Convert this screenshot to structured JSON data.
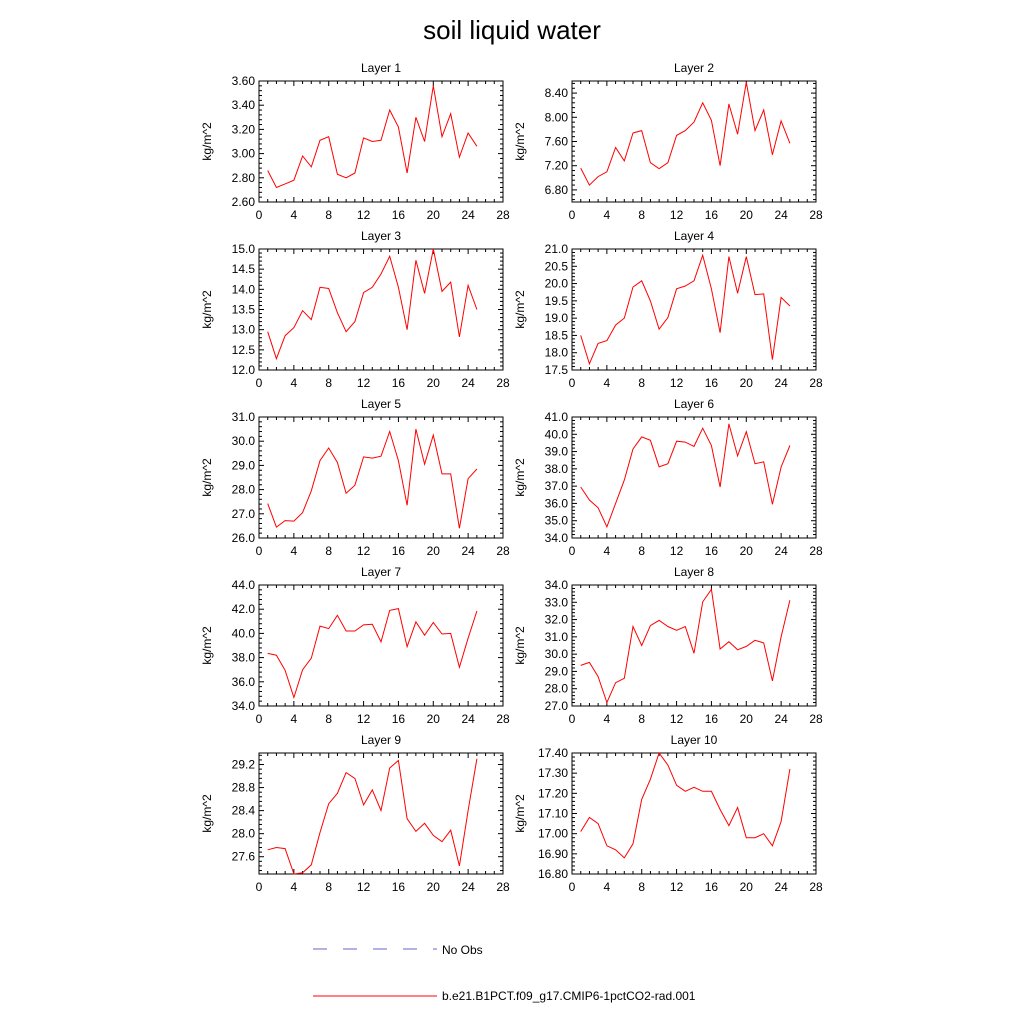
{
  "figure": {
    "title": "soil liquid water",
    "legend": {
      "no_obs_label": "No Obs",
      "model_label": "b.e21.B1PCT.f09_g17.CMIP6-1pctCO2-rad.001"
    },
    "colors": {
      "model": "#ff0000",
      "obs": "#6666cc",
      "axis": "#000000"
    }
  },
  "chart_data": [
    {
      "type": "line",
      "title": "Layer 1",
      "xlabel": "",
      "ylabel": "kg/m^2",
      "xlim": [
        0,
        28
      ],
      "xticks": [
        0,
        4,
        8,
        12,
        16,
        20,
        24,
        28
      ],
      "ylim": [
        2.6,
        3.6
      ],
      "yticks": [
        2.6,
        2.8,
        3.0,
        3.2,
        3.4,
        3.6
      ],
      "yticklabels": [
        "2.60",
        "2.80",
        "3.00",
        "3.20",
        "3.40",
        "3.60"
      ],
      "series": [
        {
          "name": "b.e21.B1PCT.f09_g17.CMIP6-1pctCO2-rad.001",
          "color": "#ff0000",
          "x": [
            1,
            2,
            3,
            4,
            5,
            6,
            7,
            8,
            9,
            10,
            11,
            12,
            13,
            14,
            15,
            16,
            17,
            18,
            19,
            20,
            21,
            22,
            23,
            24,
            25
          ],
          "y": [
            2.86,
            2.72,
            2.75,
            2.78,
            2.98,
            2.89,
            3.11,
            3.14,
            2.83,
            2.8,
            2.84,
            3.13,
            3.1,
            3.11,
            3.36,
            3.22,
            2.84,
            3.3,
            3.1,
            3.56,
            3.14,
            3.33,
            2.97,
            3.17,
            3.06
          ]
        }
      ]
    },
    {
      "type": "line",
      "title": "Layer 2",
      "xlabel": "",
      "ylabel": "kg/m^2",
      "xlim": [
        0,
        28
      ],
      "xticks": [
        0,
        4,
        8,
        12,
        16,
        20,
        24,
        28
      ],
      "ylim": [
        6.6,
        8.6
      ],
      "yticks": [
        6.8,
        7.2,
        7.6,
        8.0,
        8.4
      ],
      "yticklabels": [
        "6.80",
        "7.20",
        "7.60",
        "8.00",
        "8.40"
      ],
      "series": [
        {
          "name": "b.e21.B1PCT.f09_g17.CMIP6-1pctCO2-rad.001",
          "color": "#ff0000",
          "x": [
            1,
            2,
            3,
            4,
            5,
            6,
            7,
            8,
            9,
            10,
            11,
            12,
            13,
            14,
            15,
            16,
            17,
            18,
            19,
            20,
            21,
            22,
            23,
            24,
            25
          ],
          "y": [
            7.16,
            6.88,
            7.02,
            7.1,
            7.5,
            7.28,
            7.74,
            7.78,
            7.25,
            7.15,
            7.25,
            7.7,
            7.78,
            7.92,
            8.24,
            7.95,
            7.2,
            8.22,
            7.72,
            8.58,
            7.78,
            8.12,
            7.38,
            7.94,
            7.57
          ]
        }
      ]
    },
    {
      "type": "line",
      "title": "Layer 3",
      "xlabel": "",
      "ylabel": "kg/m^2",
      "xlim": [
        0,
        28
      ],
      "xticks": [
        0,
        4,
        8,
        12,
        16,
        20,
        24,
        28
      ],
      "ylim": [
        12.0,
        15.0
      ],
      "yticks": [
        12.0,
        12.5,
        13.0,
        13.5,
        14.0,
        14.5,
        15.0
      ],
      "yticklabels": [
        "12.0",
        "12.5",
        "13.0",
        "13.5",
        "14.0",
        "14.5",
        "15.0"
      ],
      "series": [
        {
          "name": "b.e21.B1PCT.f09_g17.CMIP6-1pctCO2-rad.001",
          "color": "#ff0000",
          "x": [
            1,
            2,
            3,
            4,
            5,
            6,
            7,
            8,
            9,
            10,
            11,
            12,
            13,
            14,
            15,
            16,
            17,
            18,
            19,
            20,
            21,
            22,
            23,
            24,
            25
          ],
          "y": [
            12.95,
            12.28,
            12.85,
            13.05,
            13.47,
            13.25,
            14.05,
            14.02,
            13.42,
            12.95,
            13.2,
            13.92,
            14.05,
            14.38,
            14.82,
            14.05,
            13.0,
            14.72,
            13.9,
            15.0,
            13.95,
            14.18,
            12.82,
            14.1,
            13.5
          ]
        }
      ]
    },
    {
      "type": "line",
      "title": "Layer 4",
      "xlabel": "",
      "ylabel": "kg/m^2",
      "xlim": [
        0,
        28
      ],
      "xticks": [
        0,
        4,
        8,
        12,
        16,
        20,
        24,
        28
      ],
      "ylim": [
        17.5,
        21.0
      ],
      "yticks": [
        17.5,
        18.0,
        18.5,
        19.0,
        19.5,
        20.0,
        20.5,
        21.0
      ],
      "yticklabels": [
        "17.5",
        "18.0",
        "18.5",
        "19.0",
        "19.5",
        "20.0",
        "20.5",
        "21.0"
      ],
      "series": [
        {
          "name": "b.e21.B1PCT.f09_g17.CMIP6-1pctCO2-rad.001",
          "color": "#ff0000",
          "x": [
            1,
            2,
            3,
            4,
            5,
            6,
            7,
            8,
            9,
            10,
            11,
            12,
            13,
            14,
            15,
            16,
            17,
            18,
            19,
            20,
            21,
            22,
            23,
            24,
            25
          ],
          "y": [
            18.5,
            17.68,
            18.27,
            18.35,
            18.8,
            19.0,
            19.9,
            20.08,
            19.5,
            18.68,
            19.02,
            19.85,
            19.93,
            20.08,
            20.82,
            19.85,
            18.58,
            20.78,
            19.72,
            20.78,
            19.68,
            19.7,
            17.8,
            19.6,
            19.35
          ]
        }
      ]
    },
    {
      "type": "line",
      "title": "Layer 5",
      "xlabel": "",
      "ylabel": "kg/m^2",
      "xlim": [
        0,
        28
      ],
      "xticks": [
        0,
        4,
        8,
        12,
        16,
        20,
        24,
        28
      ],
      "ylim": [
        26.0,
        31.0
      ],
      "yticks": [
        26.0,
        27.0,
        28.0,
        29.0,
        30.0,
        31.0
      ],
      "yticklabels": [
        "26.0",
        "27.0",
        "28.0",
        "29.0",
        "30.0",
        "31.0"
      ],
      "series": [
        {
          "name": "b.e21.B1PCT.f09_g17.CMIP6-1pctCO2-rad.001",
          "color": "#ff0000",
          "x": [
            1,
            2,
            3,
            4,
            5,
            6,
            7,
            8,
            9,
            10,
            11,
            12,
            13,
            14,
            15,
            16,
            17,
            18,
            19,
            20,
            21,
            22,
            23,
            24,
            25
          ],
          "y": [
            27.42,
            26.45,
            26.72,
            26.7,
            27.05,
            27.95,
            29.2,
            29.72,
            29.12,
            27.85,
            28.18,
            29.35,
            29.3,
            29.38,
            30.4,
            29.2,
            27.35,
            30.5,
            29.05,
            30.25,
            28.65,
            28.65,
            26.4,
            28.45,
            28.85
          ]
        }
      ]
    },
    {
      "type": "line",
      "title": "Layer 6",
      "xlabel": "",
      "ylabel": "kg/m^2",
      "xlim": [
        0,
        28
      ],
      "xticks": [
        0,
        4,
        8,
        12,
        16,
        20,
        24,
        28
      ],
      "ylim": [
        34.0,
        41.0
      ],
      "yticks": [
        34.0,
        35.0,
        36.0,
        37.0,
        38.0,
        39.0,
        40.0,
        41.0
      ],
      "yticklabels": [
        "34.0",
        "35.0",
        "36.0",
        "37.0",
        "38.0",
        "39.0",
        "40.0",
        "41.0"
      ],
      "series": [
        {
          "name": "b.e21.B1PCT.f09_g17.CMIP6-1pctCO2-rad.001",
          "color": "#ff0000",
          "x": [
            1,
            2,
            3,
            4,
            5,
            6,
            7,
            8,
            9,
            10,
            11,
            12,
            13,
            14,
            15,
            16,
            17,
            18,
            19,
            20,
            21,
            22,
            23,
            24,
            25
          ],
          "y": [
            36.95,
            36.2,
            35.75,
            34.65,
            36.0,
            37.35,
            39.15,
            39.85,
            39.65,
            38.12,
            38.3,
            39.6,
            39.55,
            39.3,
            40.35,
            39.35,
            36.95,
            40.6,
            38.75,
            40.15,
            38.3,
            38.4,
            35.95,
            38.1,
            39.35
          ]
        }
      ]
    },
    {
      "type": "line",
      "title": "Layer 7",
      "xlabel": "",
      "ylabel": "kg/m^2",
      "xlim": [
        0,
        28
      ],
      "xticks": [
        0,
        4,
        8,
        12,
        16,
        20,
        24,
        28
      ],
      "ylim": [
        34.0,
        44.0
      ],
      "yticks": [
        34.0,
        36.0,
        38.0,
        40.0,
        42.0,
        44.0
      ],
      "yticklabels": [
        "34.0",
        "36.0",
        "38.0",
        "40.0",
        "42.0",
        "44.0"
      ],
      "series": [
        {
          "name": "b.e21.B1PCT.f09_g17.CMIP6-1pctCO2-rad.001",
          "color": "#ff0000",
          "x": [
            1,
            2,
            3,
            4,
            5,
            6,
            7,
            8,
            9,
            10,
            11,
            12,
            13,
            14,
            15,
            16,
            17,
            18,
            19,
            20,
            21,
            22,
            23,
            24,
            25
          ],
          "y": [
            38.35,
            38.2,
            36.95,
            34.7,
            37.0,
            37.95,
            40.6,
            40.4,
            41.5,
            40.2,
            40.2,
            40.7,
            40.75,
            39.3,
            41.9,
            42.05,
            38.9,
            40.95,
            39.85,
            40.9,
            39.95,
            40.0,
            37.2,
            39.6,
            41.85
          ]
        }
      ]
    },
    {
      "type": "line",
      "title": "Layer 8",
      "xlabel": "",
      "ylabel": "kg/m^2",
      "xlim": [
        0,
        28
      ],
      "xticks": [
        0,
        4,
        8,
        12,
        16,
        20,
        24,
        28
      ],
      "ylim": [
        27.0,
        34.0
      ],
      "yticks": [
        27.0,
        28.0,
        29.0,
        30.0,
        31.0,
        32.0,
        33.0,
        34.0
      ],
      "yticklabels": [
        "27.0",
        "28.0",
        "29.0",
        "30.0",
        "31.0",
        "32.0",
        "33.0",
        "34.0"
      ],
      "series": [
        {
          "name": "b.e21.B1PCT.f09_g17.CMIP6-1pctCO2-rad.001",
          "color": "#ff0000",
          "x": [
            1,
            2,
            3,
            4,
            5,
            6,
            7,
            8,
            9,
            10,
            11,
            12,
            13,
            14,
            15,
            16,
            17,
            18,
            19,
            20,
            21,
            22,
            23,
            24,
            25
          ],
          "y": [
            29.35,
            29.52,
            28.7,
            27.2,
            28.35,
            28.6,
            31.6,
            30.5,
            31.65,
            31.95,
            31.6,
            31.38,
            31.6,
            30.05,
            33.02,
            33.75,
            30.3,
            30.72,
            30.25,
            30.45,
            30.8,
            30.65,
            28.45,
            31.0,
            33.12
          ]
        }
      ]
    },
    {
      "type": "line",
      "title": "Layer 9",
      "xlabel": "",
      "ylabel": "kg/m^2",
      "xlim": [
        0,
        28
      ],
      "xticks": [
        0,
        4,
        8,
        12,
        16,
        20,
        24,
        28
      ],
      "ylim": [
        27.3,
        29.4
      ],
      "yticks": [
        27.6,
        28.0,
        28.4,
        28.8,
        29.2
      ],
      "yticklabels": [
        "27.6",
        "28.0",
        "28.4",
        "28.8",
        "29.2"
      ],
      "series": [
        {
          "name": "b.e21.B1PCT.f09_g17.CMIP6-1pctCO2-rad.001",
          "color": "#ff0000",
          "x": [
            1,
            2,
            3,
            4,
            5,
            6,
            7,
            8,
            9,
            10,
            11,
            12,
            13,
            14,
            15,
            16,
            17,
            18,
            19,
            20,
            21,
            22,
            23,
            24,
            25
          ],
          "y": [
            27.72,
            27.76,
            27.74,
            27.3,
            27.32,
            27.46,
            28.02,
            28.52,
            28.7,
            29.06,
            28.96,
            28.5,
            28.76,
            28.4,
            29.14,
            29.27,
            28.26,
            28.04,
            28.18,
            27.97,
            27.86,
            28.06,
            27.44,
            28.4,
            29.3
          ]
        }
      ]
    },
    {
      "type": "line",
      "title": "Layer 10",
      "xlabel": "",
      "ylabel": "kg/m^2",
      "xlim": [
        0,
        28
      ],
      "xticks": [
        0,
        4,
        8,
        12,
        16,
        20,
        24,
        28
      ],
      "ylim": [
        16.8,
        17.4
      ],
      "yticks": [
        16.8,
        16.9,
        17.0,
        17.1,
        17.2,
        17.3,
        17.4
      ],
      "yticklabels": [
        "16.80",
        "16.90",
        "17.00",
        "17.10",
        "17.20",
        "17.30",
        "17.40"
      ],
      "series": [
        {
          "name": "b.e21.B1PCT.f09_g17.CMIP6-1pctCO2-rad.001",
          "color": "#ff0000",
          "x": [
            1,
            2,
            3,
            4,
            5,
            6,
            7,
            8,
            9,
            10,
            11,
            12,
            13,
            14,
            15,
            16,
            17,
            18,
            19,
            20,
            21,
            22,
            23,
            24,
            25
          ],
          "y": [
            17.01,
            17.08,
            17.05,
            16.94,
            16.92,
            16.88,
            16.95,
            17.17,
            17.27,
            17.4,
            17.34,
            17.24,
            17.21,
            17.23,
            17.21,
            17.21,
            17.12,
            17.04,
            17.13,
            16.98,
            16.98,
            17.0,
            16.94,
            17.06,
            17.32
          ]
        }
      ]
    }
  ]
}
